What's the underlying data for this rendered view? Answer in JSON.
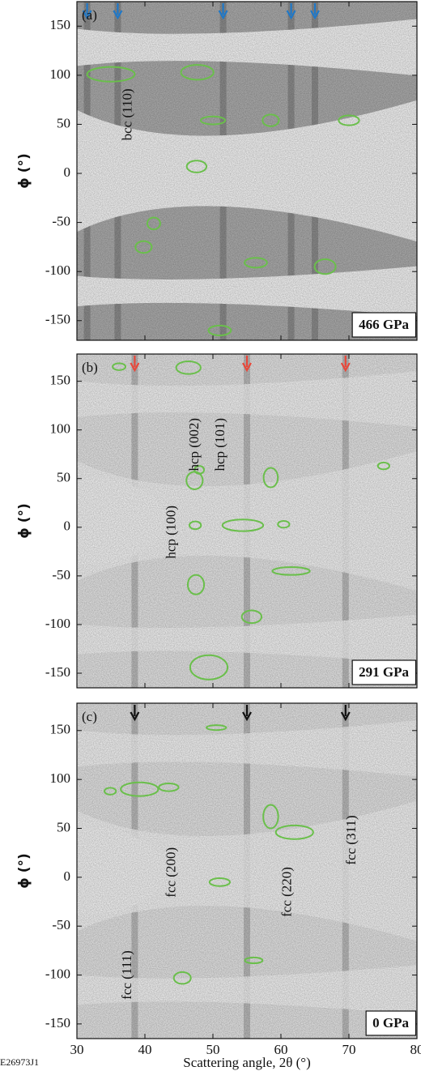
{
  "figure_id": "E26973J1",
  "chart_data": [
    {
      "type": "image",
      "panel_label": "(a)",
      "pressure": "466 GPa",
      "ylabel": "ϕ (°)",
      "xlim": [
        30,
        80
      ],
      "xticks": [
        30,
        40,
        50,
        60,
        70,
        80
      ],
      "ylim": [
        -170,
        175
      ],
      "yticks": [
        150,
        100,
        50,
        0,
        -50,
        -100,
        -150
      ],
      "background": "#b4b4b4",
      "ellipse_color": "#6abf4b",
      "arrows": {
        "color": "#1f78c8",
        "x": [
          31.5,
          36,
          51.5,
          61.5,
          65
        ]
      },
      "annotations": [
        {
          "text": "bcc (110)",
          "x": 37.6,
          "y": 60,
          "color": "#1f78c8"
        }
      ],
      "ellipses": [
        {
          "x": 35,
          "y": 101,
          "w": 7,
          "h": 15
        },
        {
          "x": 47.7,
          "y": 103,
          "w": 4.8,
          "h": 15
        },
        {
          "x": 50,
          "y": 54,
          "w": 3.6,
          "h": 8
        },
        {
          "x": 58.5,
          "y": 54,
          "w": 2.4,
          "h": 12
        },
        {
          "x": 70,
          "y": 54,
          "w": 3,
          "h": 10
        },
        {
          "x": 47.6,
          "y": 7,
          "w": 2.9,
          "h": 12
        },
        {
          "x": 41.3,
          "y": -51,
          "w": 1.9,
          "h": 12
        },
        {
          "x": 39.8,
          "y": -75,
          "w": 2.4,
          "h": 12
        },
        {
          "x": 56.3,
          "y": -91,
          "w": 3.3,
          "h": 10
        },
        {
          "x": 66.5,
          "y": -95,
          "w": 3.1,
          "h": 15
        },
        {
          "x": 51,
          "y": -160,
          "w": 3.3,
          "h": 10
        }
      ]
    },
    {
      "type": "image",
      "panel_label": "(b)",
      "pressure": "291 GPa",
      "ylabel": "ϕ (°)",
      "xlim": [
        30,
        80
      ],
      "xticks": [
        30,
        40,
        50,
        60,
        70,
        80
      ],
      "ylim": [
        -165,
        178
      ],
      "yticks": [
        150,
        100,
        50,
        0,
        -50,
        -100,
        -150
      ],
      "background": "#efefef",
      "ellipse_color": "#6abf4b",
      "arrows": {
        "color": "#e8473a",
        "x": [
          38.5,
          55,
          69.5
        ]
      },
      "annotations": [
        {
          "text": "hcp (100)",
          "x": 44,
          "y": -5,
          "color": "#e8473a"
        },
        {
          "text": "hcp (002)",
          "x": 47.4,
          "y": 85,
          "color": "#e8473a"
        },
        {
          "text": "hcp (101)",
          "x": 51.2,
          "y": 85,
          "color": "#e8473a"
        }
      ],
      "ellipses": [
        {
          "x": 36.2,
          "y": 165,
          "w": 1.9,
          "h": 7
        },
        {
          "x": 46.4,
          "y": 164,
          "w": 3.6,
          "h": 13
        },
        {
          "x": 48,
          "y": 59,
          "w": 1.4,
          "h": 8
        },
        {
          "x": 47.3,
          "y": 48,
          "w": 2.4,
          "h": 18
        },
        {
          "x": 58.5,
          "y": 51,
          "w": 2.1,
          "h": 20
        },
        {
          "x": 75.1,
          "y": 63,
          "w": 1.7,
          "h": 7
        },
        {
          "x": 47.4,
          "y": 2,
          "w": 1.7,
          "h": 8
        },
        {
          "x": 54.4,
          "y": 2,
          "w": 6,
          "h": 12
        },
        {
          "x": 60.4,
          "y": 3,
          "w": 1.7,
          "h": 7
        },
        {
          "x": 61.5,
          "y": -45,
          "w": 5.5,
          "h": 8
        },
        {
          "x": 47.5,
          "y": -59,
          "w": 2.4,
          "h": 20
        },
        {
          "x": 55.7,
          "y": -92,
          "w": 2.9,
          "h": 13
        },
        {
          "x": 49.4,
          "y": -144,
          "w": 5.5,
          "h": 25
        }
      ]
    },
    {
      "type": "image",
      "panel_label": "(c)",
      "pressure": "0 GPa",
      "ylabel": "ϕ (°)",
      "xlabel": "Scattering angle, 2θ (°)",
      "xlim": [
        30,
        80
      ],
      "xticks": [
        30,
        40,
        50,
        60,
        70,
        80
      ],
      "ylim": [
        -165,
        178
      ],
      "yticks": [
        150,
        100,
        50,
        0,
        -50,
        -100,
        -150
      ],
      "background": "#eeeeee",
      "ellipse_color": "#6abf4b",
      "arrows": {
        "color": "#111111",
        "x": [
          38.5,
          55,
          69.5
        ]
      },
      "annotations": [
        {
          "text": "fcc (200)",
          "x": 44,
          "y": 5,
          "color": "#111111"
        },
        {
          "text": "fcc (220)",
          "x": 61,
          "y": -15,
          "color": "#111111"
        },
        {
          "text": "fcc (311)",
          "x": 70.5,
          "y": 38,
          "color": "#111111"
        },
        {
          "text": "fcc (111)",
          "x": 37.5,
          "y": -100,
          "color": "#111111"
        }
      ],
      "ellipses": [
        {
          "x": 50.5,
          "y": 153,
          "w": 2.9,
          "h": 5
        },
        {
          "x": 34.9,
          "y": 88,
          "w": 1.7,
          "h": 7
        },
        {
          "x": 39.2,
          "y": 90,
          "w": 5.5,
          "h": 14
        },
        {
          "x": 43.5,
          "y": 92,
          "w": 2.9,
          "h": 8
        },
        {
          "x": 58.5,
          "y": 62,
          "w": 2.2,
          "h": 24
        },
        {
          "x": 62,
          "y": 46,
          "w": 5.5,
          "h": 14
        },
        {
          "x": 51,
          "y": -5,
          "w": 3,
          "h": 8
        },
        {
          "x": 56,
          "y": -85,
          "w": 2.6,
          "h": 6
        },
        {
          "x": 45.5,
          "y": -103,
          "w": 2.5,
          "h": 12
        }
      ]
    }
  ]
}
